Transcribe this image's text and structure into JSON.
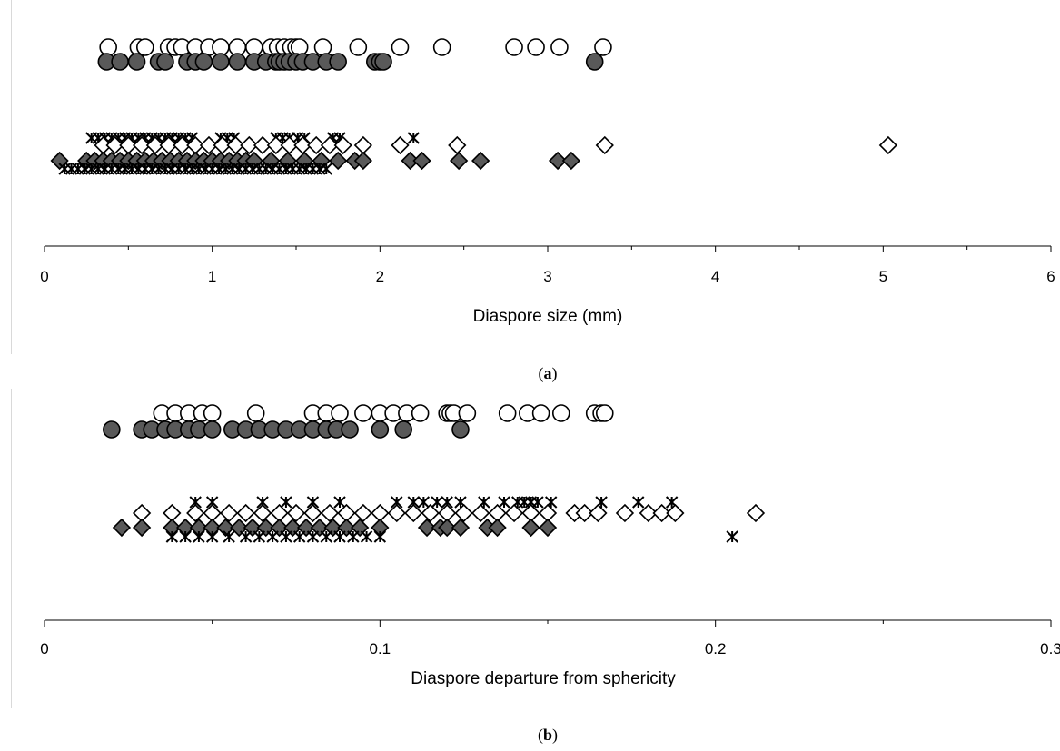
{
  "chart_data": [
    {
      "type": "scatter",
      "panel_label": [
        "(",
        "a",
        ")"
      ],
      "xlabel": "Diaspore size (mm)",
      "ylabel": "",
      "xlim": [
        0,
        6
      ],
      "xticks": [
        "0",
        "1",
        "2",
        "3",
        "4",
        "5",
        "6"
      ],
      "grid": false,
      "legend": "none",
      "series": [
        {
          "marker": "circle-open",
          "color": "#ffffff",
          "row": 1,
          "x": [
            0.38,
            0.56,
            0.6,
            0.74,
            0.78,
            0.82,
            0.9,
            0.98,
            1.05,
            1.15,
            1.25,
            1.35,
            1.39,
            1.43,
            1.47,
            1.5,
            1.52,
            1.66,
            1.87,
            2.12,
            2.37,
            2.8,
            2.93,
            3.07,
            3.33
          ]
        },
        {
          "marker": "circle-filled",
          "color": "#595959",
          "row": 2,
          "x": [
            0.37,
            0.45,
            0.55,
            0.68,
            0.72,
            0.85,
            0.9,
            0.95,
            1.05,
            1.15,
            1.25,
            1.32,
            1.38,
            1.4,
            1.43,
            1.46,
            1.5,
            1.54,
            1.6,
            1.68,
            1.75,
            1.97,
            2.0,
            2.02,
            3.28
          ]
        },
        {
          "marker": "asterisk",
          "color": "#000000",
          "row": 3,
          "x": [
            0.28,
            0.32,
            0.36,
            0.4,
            0.44,
            0.48,
            0.52,
            0.56,
            0.6,
            0.64,
            0.68,
            0.72,
            0.76,
            0.8,
            0.84,
            0.88,
            1.05,
            1.09,
            1.13,
            1.38,
            1.42,
            1.46,
            1.51,
            1.55,
            1.72,
            1.76,
            2.2
          ]
        },
        {
          "marker": "diamond-open",
          "color": "#ffffff",
          "row": 3.5,
          "x": [
            0.35,
            0.42,
            0.5,
            0.58,
            0.66,
            0.74,
            0.82,
            0.9,
            0.98,
            1.06,
            1.14,
            1.22,
            1.3,
            1.38,
            1.46,
            1.54,
            1.62,
            1.7,
            1.78,
            1.9,
            2.12,
            2.46,
            3.34,
            5.03
          ]
        },
        {
          "marker": "diamond-filled",
          "color": "#595959",
          "row": 4,
          "x": [
            0.09,
            0.25,
            0.3,
            0.35,
            0.4,
            0.45,
            0.5,
            0.55,
            0.6,
            0.65,
            0.7,
            0.75,
            0.8,
            0.85,
            0.9,
            0.95,
            1.0,
            1.05,
            1.1,
            1.15,
            1.2,
            1.25,
            1.35,
            1.45,
            1.55,
            1.65,
            1.75,
            1.85,
            1.9,
            2.18,
            2.25,
            2.47,
            2.6,
            3.06,
            3.14
          ]
        },
        {
          "marker": "asterisk",
          "color": "#000000",
          "row": 5,
          "x": [
            0.12,
            0.16,
            0.2,
            0.24,
            0.28,
            0.32,
            0.36,
            0.4,
            0.44,
            0.48,
            0.52,
            0.56,
            0.6,
            0.64,
            0.68,
            0.72,
            0.76,
            0.8,
            0.84,
            0.88,
            0.92,
            0.96,
            1.0,
            1.04,
            1.08,
            1.12,
            1.16,
            1.2,
            1.24,
            1.28,
            1.32,
            1.36,
            1.4,
            1.44,
            1.48,
            1.52,
            1.56,
            1.6,
            1.64,
            1.68
          ]
        }
      ]
    },
    {
      "type": "scatter",
      "panel_label": [
        "(",
        "b",
        ")"
      ],
      "xlabel": "Diaspore departure from sphericity",
      "ylabel": "",
      "xlim": [
        0,
        0.3
      ],
      "xticks": [
        "0",
        "0.1",
        "0.2",
        "0.3"
      ],
      "grid": false,
      "legend": "none",
      "series": [
        {
          "marker": "circle-open",
          "color": "#ffffff",
          "row": 1,
          "x": [
            0.035,
            0.039,
            0.043,
            0.047,
            0.05,
            0.063,
            0.08,
            0.084,
            0.088,
            0.095,
            0.1,
            0.104,
            0.108,
            0.112,
            0.12,
            0.121,
            0.122,
            0.126,
            0.138,
            0.144,
            0.148,
            0.154,
            0.164,
            0.166,
            0.167
          ]
        },
        {
          "marker": "circle-filled",
          "color": "#595959",
          "row": 2,
          "x": [
            0.02,
            0.029,
            0.032,
            0.036,
            0.039,
            0.043,
            0.046,
            0.05,
            0.056,
            0.06,
            0.064,
            0.068,
            0.072,
            0.076,
            0.08,
            0.084,
            0.087,
            0.091,
            0.1,
            0.107,
            0.124
          ]
        },
        {
          "marker": "asterisk",
          "color": "#000000",
          "row": 3,
          "x": [
            0.045,
            0.05,
            0.065,
            0.072,
            0.08,
            0.088,
            0.105,
            0.11,
            0.113,
            0.117,
            0.12,
            0.124,
            0.131,
            0.137,
            0.141,
            0.143,
            0.145,
            0.147,
            0.151,
            0.166,
            0.177,
            0.187
          ]
        },
        {
          "marker": "diamond-open",
          "color": "#ffffff",
          "row": 3.5,
          "x": [
            0.029,
            0.038,
            0.045,
            0.05,
            0.055,
            0.06,
            0.065,
            0.07,
            0.075,
            0.08,
            0.085,
            0.09,
            0.095,
            0.1,
            0.105,
            0.11,
            0.115,
            0.12,
            0.125,
            0.13,
            0.135,
            0.14,
            0.145,
            0.15,
            0.158,
            0.161,
            0.165,
            0.173,
            0.18,
            0.184,
            0.188,
            0.212
          ]
        },
        {
          "marker": "diamond-filled",
          "color": "#595959",
          "row": 4,
          "x": [
            0.023,
            0.029,
            0.038,
            0.042,
            0.046,
            0.05,
            0.054,
            0.058,
            0.062,
            0.066,
            0.07,
            0.074,
            0.078,
            0.082,
            0.086,
            0.09,
            0.094,
            0.1,
            0.114,
            0.118,
            0.12,
            0.124,
            0.132,
            0.135,
            0.145,
            0.15
          ]
        },
        {
          "marker": "asterisk",
          "color": "#000000",
          "row": 5,
          "x": [
            0.038,
            0.042,
            0.046,
            0.05,
            0.055,
            0.06,
            0.064,
            0.068,
            0.072,
            0.076,
            0.08,
            0.084,
            0.088,
            0.092,
            0.096,
            0.1,
            0.205
          ]
        }
      ]
    }
  ]
}
